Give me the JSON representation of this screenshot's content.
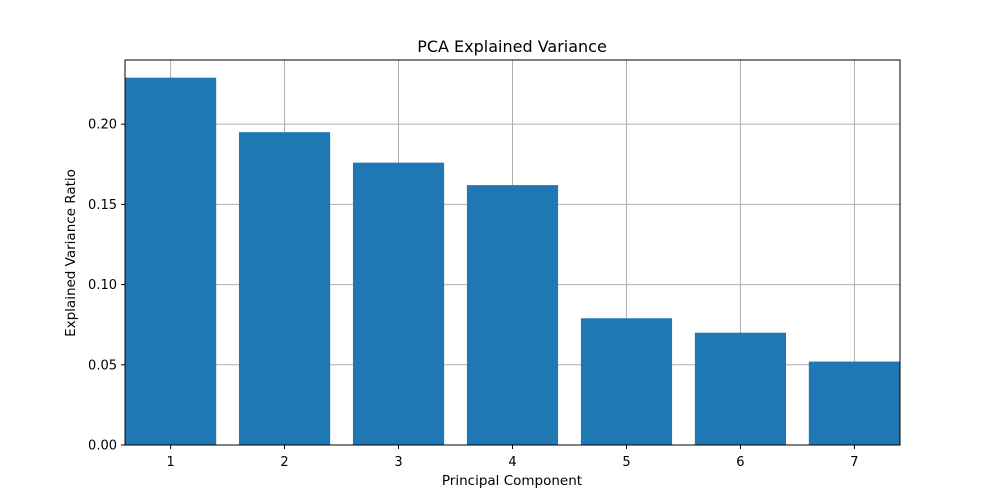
{
  "chart_data": {
    "type": "bar",
    "title": "PCA Explained Variance",
    "xlabel": "Principal Component",
    "ylabel": "Explained Variance Ratio",
    "categories": [
      "1",
      "2",
      "3",
      "4",
      "5",
      "6",
      "7"
    ],
    "values": [
      0.229,
      0.195,
      0.176,
      0.162,
      0.079,
      0.07,
      0.052
    ],
    "ylim": [
      0,
      0.24
    ],
    "yticks": [
      0.0,
      0.05,
      0.1,
      0.15,
      0.2
    ],
    "ytick_labels": [
      "0.00",
      "0.05",
      "0.10",
      "0.15",
      "0.20"
    ],
    "grid": true,
    "bar_color": "#1f77b4"
  }
}
